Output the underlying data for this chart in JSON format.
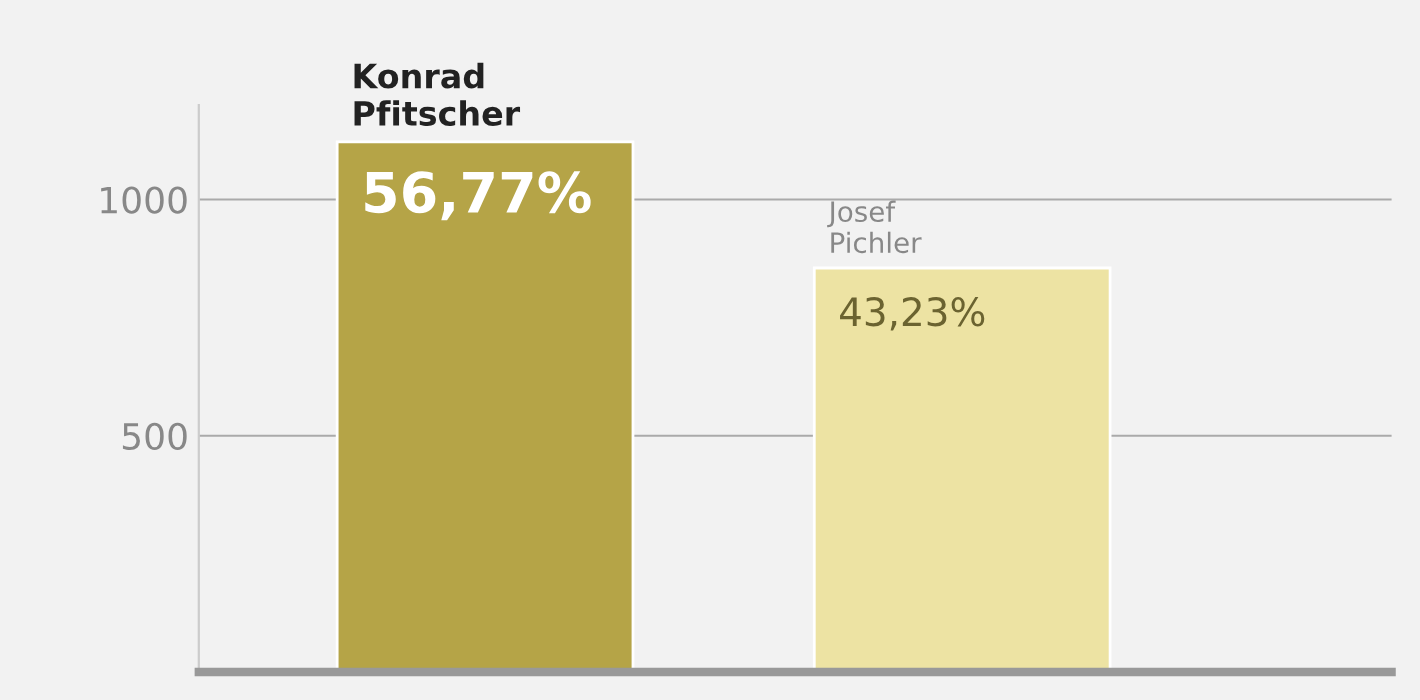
{
  "chart_data": {
    "type": "bar",
    "categories": [
      "Konrad Pfitscher",
      "Josef Pichler"
    ],
    "values": [
      1122,
      855
    ],
    "colors": [
      "#b5a447",
      "#ede3a3"
    ],
    "annotations": [
      {
        "text": "56,77%",
        "x": "Konrad Pfitscher",
        "y": 1122
      },
      {
        "text": "43,23%",
        "x": "Josef Pichler",
        "y": 855
      }
    ],
    "ylim": [
      0,
      1200
    ],
    "yticks": [
      500,
      1000
    ],
    "grid": "y"
  }
}
